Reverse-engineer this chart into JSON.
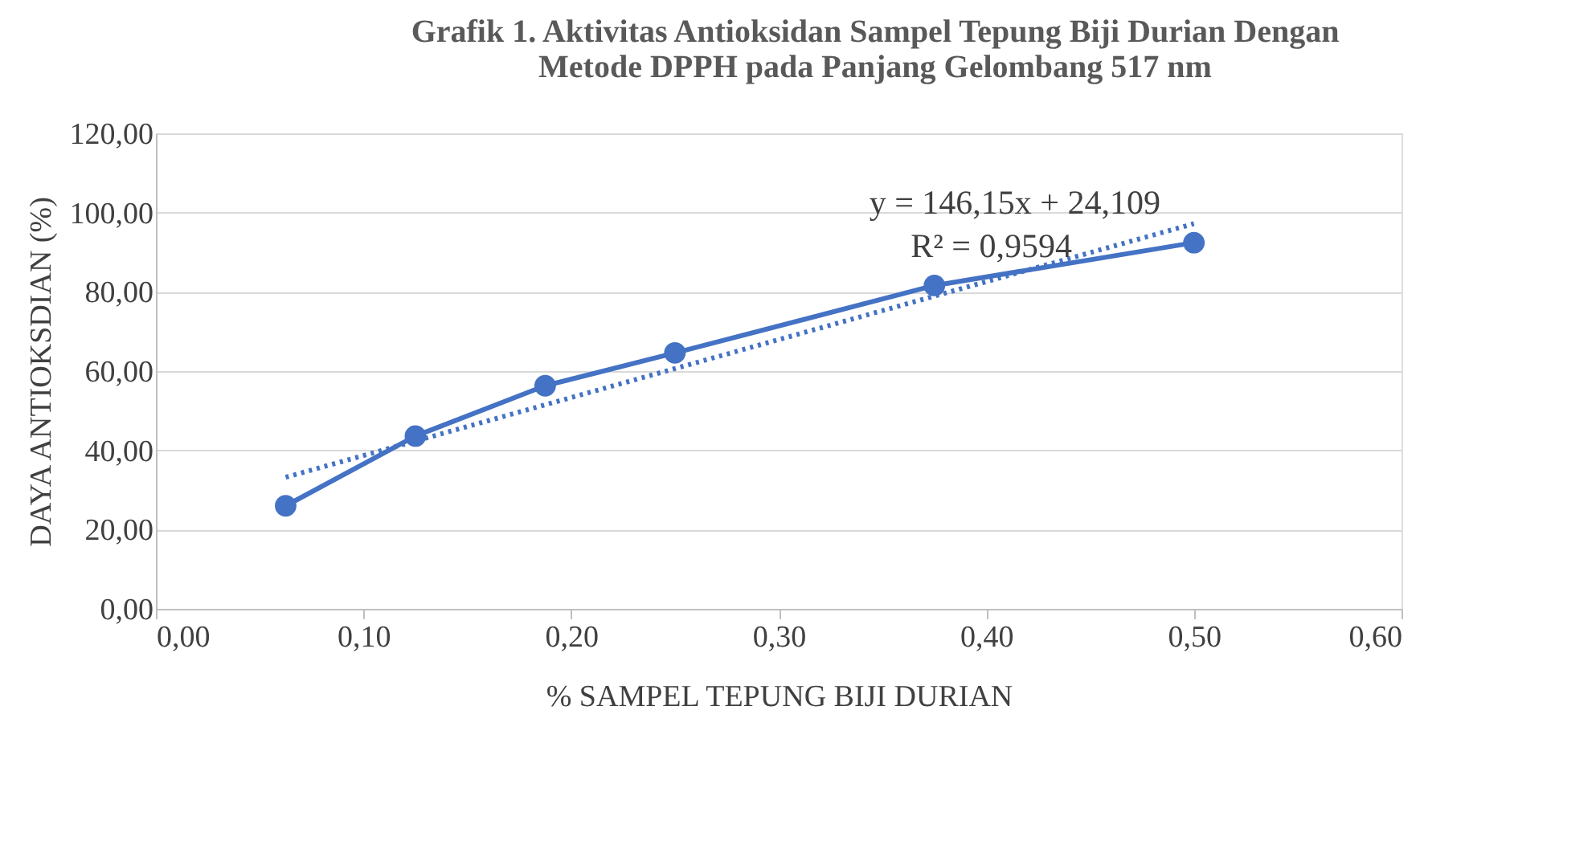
{
  "chart_data": {
    "type": "line",
    "title": [
      "Grafik 1. Aktivitas Antioksidan Sampel Tepung Biji Durian  Dengan",
      "Metode DPPH pada Panjang Gelombang 517 nm"
    ],
    "xlabel": "% SAMPEL TEPUNG BIJI DURIAN",
    "ylabel": "DAYA ANTIOKSDIAN (%)",
    "x": [
      0.0625,
      0.125,
      0.1875,
      0.25,
      0.375,
      0.5
    ],
    "series": [
      {
        "color": "#4472c4",
        "values": [
          26,
          43.6,
          56.3,
          64.6,
          81.6,
          92.4
        ],
        "marker": "circle",
        "line_style": "solid"
      },
      {
        "type": "line",
        "color": "#4472c4",
        "x": [
          0.0625,
          0.5
        ],
        "values": [
          33.2,
          97.2
        ],
        "marker": "none",
        "line_style": "dotted"
      }
    ],
    "xlim": [
      0,
      0.6
    ],
    "ylim": [
      0,
      120
    ],
    "xticks": [
      {
        "value": 0,
        "label": "0,00"
      },
      {
        "value": 0.1,
        "label": "0,10"
      },
      {
        "value": 0.2,
        "label": "0,20"
      },
      {
        "value": 0.3,
        "label": "0,30"
      },
      {
        "value": 0.4,
        "label": "0,40"
      },
      {
        "value": 0.5,
        "label": "0,50"
      },
      {
        "value": 0.6,
        "label": "0,60"
      }
    ],
    "yticks": [
      {
        "value": 0,
        "label": "0,00"
      },
      {
        "value": 20,
        "label": "20,00"
      },
      {
        "value": 40,
        "label": "40,00"
      },
      {
        "value": 60,
        "label": "60,00"
      },
      {
        "value": 80,
        "label": "80,00"
      },
      {
        "value": 100,
        "label": "100,00"
      },
      {
        "value": 120,
        "label": "120,00"
      }
    ],
    "annotations": [
      "y = 146,15x + 24,109",
      "R² = 0,9594"
    ],
    "grid": "y"
  }
}
